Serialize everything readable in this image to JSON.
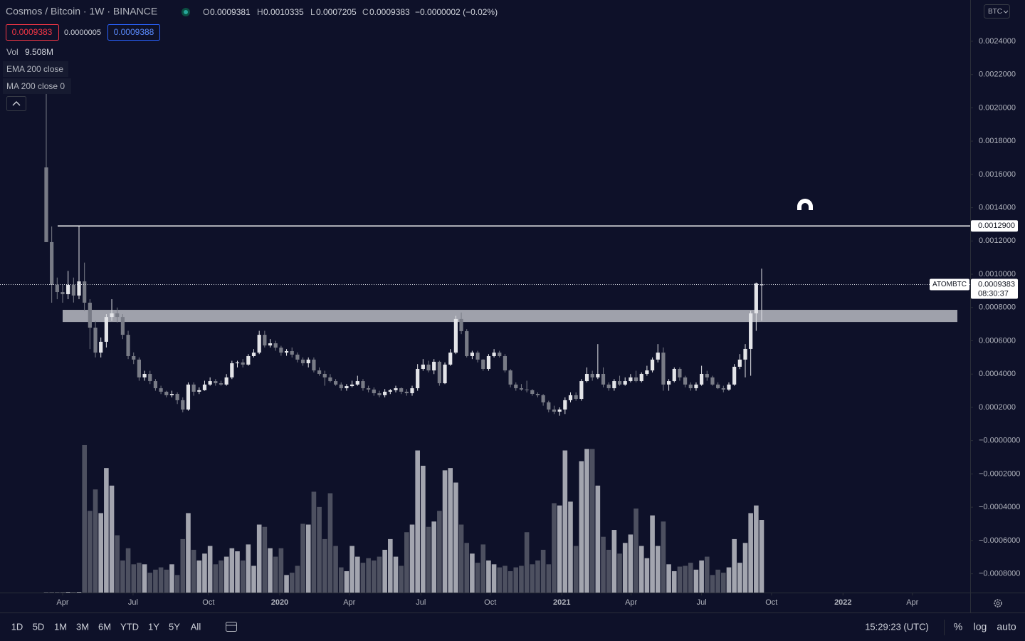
{
  "header": {
    "symbol_title": "Cosmos / Bitcoin · 1W · BINANCE",
    "o": "O",
    "h": "H",
    "l": "L",
    "c": "C",
    "change": "−0.0000002 (−0.02%)",
    "sell": "0.0009383",
    "spread": "0.0000005",
    "buy": "0.0009388",
    "vol_label": "Vol",
    "vol_value": "9.508M",
    "indicators": [
      "EMA 200 close",
      "MA 200 close 0"
    ]
  },
  "currency": "BTC",
  "toolbar": {
    "ranges": [
      "1D",
      "5D",
      "1M",
      "3M",
      "6M",
      "YTD",
      "1Y",
      "5Y",
      "All"
    ],
    "time": "15:29:23 (UTC)",
    "options": [
      "%",
      "log",
      "auto"
    ]
  },
  "chart_data": {
    "type": "candlestick",
    "countdown": "08:30:37",
    "ylim": [
      -0.000913,
      0.002648
    ],
    "yticks": [
      {
        "value": 0.0024,
        "label": "0.0024000"
      },
      {
        "value": 0.0022,
        "label": "0.0022000"
      },
      {
        "value": 0.002,
        "label": "0.0020000"
      },
      {
        "value": 0.0018,
        "label": "0.0018000"
      },
      {
        "value": 0.0016,
        "label": "0.0016000"
      },
      {
        "value": 0.0014,
        "label": "0.0014000"
      },
      {
        "value": 0.0012,
        "label": "0.0012000"
      },
      {
        "value": 0.001,
        "label": "0.0010000"
      },
      {
        "value": 0.0008,
        "label": "0.0008000"
      },
      {
        "value": 0.0006,
        "label": "0.0006000"
      },
      {
        "value": 0.0004,
        "label": "0.0004000"
      },
      {
        "value": 0.0002,
        "label": "0.0002000"
      },
      {
        "value": 0,
        "label": "−0.0000000"
      },
      {
        "value": -0.0002,
        "label": "−0.0002000"
      },
      {
        "value": -0.0004,
        "label": "−0.0004000"
      },
      {
        "value": -0.0006,
        "label": "−0.0006000"
      },
      {
        "value": -0.0008,
        "label": "−0.0008000"
      }
    ],
    "xlim": [
      -8.47,
      169.19
    ],
    "xticks": [
      {
        "value": 3.0,
        "label": "Apr"
      },
      {
        "value": 15.9,
        "label": "Jul"
      },
      {
        "value": 29.7,
        "label": "Oct"
      },
      {
        "value": 42.75,
        "label": "2020"
      },
      {
        "value": 55.5,
        "label": "Apr"
      },
      {
        "value": 68.6,
        "label": "Jul"
      },
      {
        "value": 81.3,
        "label": "Oct"
      },
      {
        "value": 94.4,
        "label": "2021"
      },
      {
        "value": 107.1,
        "label": "Apr"
      },
      {
        "value": 120.0,
        "label": "Jul"
      },
      {
        "value": 132.8,
        "label": "Oct"
      },
      {
        "value": 145.9,
        "label": "2022"
      },
      {
        "value": 158.6,
        "label": "Apr"
      }
    ],
    "volume_lim": [
      0,
      22
    ],
    "hline": {
      "value": 0.00129,
      "label": "0.0012900"
    },
    "zone": {
      "low": 0.000713,
      "high": 0.000786
    },
    "series": [
      {
        "name": "ATOMBTC",
        "up_color": "#e3e4e8",
        "down_color": "#787b86",
        "ohlc": [
          [
            0.001642,
            0.002092,
            0.001193,
            0.001193
          ],
          [
            0.001193,
            0.001287,
            0.000829,
            0.000936
          ],
          [
            0.000936,
            0.00098,
            0.00085,
            0.000893
          ],
          [
            0.000893,
            0.000936,
            0.000829,
            0.00088
          ],
          [
            0.00088,
            0.00102,
            0.00085,
            0.000936
          ],
          [
            0.000936,
            0.00098,
            0.00083,
            0.000872
          ],
          [
            0.000872,
            0.001287,
            0.00085,
            0.000957
          ],
          [
            0.000957,
            0.00107,
            0.00078,
            0.000829
          ],
          [
            0.000829,
            0.00085,
            0.00055,
            0.000679
          ],
          [
            0.000679,
            0.00072,
            0.0005,
            0.000529
          ],
          [
            0.000529,
            0.00062,
            0.0005,
            0.000594
          ],
          [
            0.000594,
            0.00076,
            0.00056,
            0.000743
          ],
          [
            0.000743,
            0.00085,
            0.00072,
            0.000765
          ],
          [
            0.000765,
            0.0008,
            0.00071,
            0.000743
          ],
          [
            0.000743,
            0.00076,
            0.00061,
            0.000636
          ],
          [
            0.000636,
            0.00066,
            0.00049,
            0.000508
          ],
          [
            0.000508,
            0.00053,
            0.00046,
            0.000487
          ],
          [
            0.000487,
            0.0005,
            0.00036,
            0.00038
          ],
          [
            0.00038,
            0.00042,
            0.00036,
            0.000401
          ],
          [
            0.000401,
            0.00042,
            0.00034,
            0.000358
          ],
          [
            0.000358,
            0.00037,
            0.0003,
            0.000315
          ],
          [
            0.000315,
            0.00033,
            0.00028,
            0.000294
          ],
          [
            0.000294,
            0.0003,
            0.00026,
            0.000273
          ],
          [
            0.000273,
            0.0003,
            0.00026,
            0.000281
          ],
          [
            0.000281,
            0.00029,
            0.00022,
            0.000243
          ],
          [
            0.000243,
            0.00026,
            0.00017,
            0.000187
          ],
          [
            0.000187,
            0.00035,
            0.00018,
            0.000337
          ],
          [
            0.000337,
            0.00035,
            0.00027,
            0.000294
          ],
          [
            0.000294,
            0.00032,
            0.00028,
            0.000303
          ],
          [
            0.000303,
            0.00036,
            0.0003,
            0.000337
          ],
          [
            0.000337,
            0.00038,
            0.00033,
            0.000358
          ],
          [
            0.000358,
            0.00037,
            0.00033,
            0.000345
          ],
          [
            0.000345,
            0.00036,
            0.00033,
            0.000337
          ],
          [
            0.000337,
            0.0004,
            0.00033,
            0.00038
          ],
          [
            0.00038,
            0.00048,
            0.00037,
            0.000465
          ],
          [
            0.000465,
            0.00048,
            0.00044,
            0.00047
          ],
          [
            0.00047,
            0.00049,
            0.00044,
            0.000457
          ],
          [
            0.000457,
            0.00052,
            0.00045,
            0.000508
          ],
          [
            0.000508,
            0.00055,
            0.0005,
            0.000529
          ],
          [
            0.000529,
            0.00066,
            0.00052,
            0.000636
          ],
          [
            0.000636,
            0.00066,
            0.00056,
            0.000572
          ],
          [
            0.000572,
            0.00061,
            0.00056,
            0.000585
          ],
          [
            0.000585,
            0.0006,
            0.00054,
            0.000559
          ],
          [
            0.000559,
            0.00057,
            0.00051,
            0.000529
          ],
          [
            0.000529,
            0.00055,
            0.00051,
            0.000538
          ],
          [
            0.000538,
            0.00056,
            0.0005,
            0.000517
          ],
          [
            0.000517,
            0.00053,
            0.00047,
            0.000487
          ],
          [
            0.000487,
            0.0005,
            0.00045,
            0.000465
          ],
          [
            0.000465,
            0.0005,
            0.00044,
            0.000487
          ],
          [
            0.000487,
            0.0005,
            0.00041,
            0.000422
          ],
          [
            0.000422,
            0.00044,
            0.00039,
            0.000401
          ],
          [
            0.000401,
            0.00042,
            0.00033,
            0.00038
          ],
          [
            0.00038,
            0.0004,
            0.00035,
            0.000358
          ],
          [
            0.000358,
            0.00037,
            0.00033,
            0.000337
          ],
          [
            0.000337,
            0.00035,
            0.0003,
            0.000315
          ],
          [
            0.000315,
            0.00034,
            0.0003,
            0.000328
          ],
          [
            0.000328,
            0.00036,
            0.00032,
            0.000337
          ],
          [
            0.000337,
            0.00039,
            0.00033,
            0.000358
          ],
          [
            0.000358,
            0.00037,
            0.0003,
            0.000315
          ],
          [
            0.000315,
            0.00033,
            0.00029,
            0.000307
          ],
          [
            0.000307,
            0.00032,
            0.00027,
            0.000285
          ],
          [
            0.000285,
            0.0003,
            0.00026,
            0.000273
          ],
          [
            0.000273,
            0.00031,
            0.00026,
            0.000294
          ],
          [
            0.000294,
            0.00031,
            0.00028,
            0.000303
          ],
          [
            0.000303,
            0.00033,
            0.00029,
            0.000315
          ],
          [
            0.000315,
            0.00032,
            0.00028,
            0.000294
          ],
          [
            0.000294,
            0.00031,
            0.00027,
            0.000285
          ],
          [
            0.000285,
            0.00033,
            0.00027,
            0.000315
          ],
          [
            0.000315,
            0.00046,
            0.0003,
            0.000431
          ],
          [
            0.000431,
            0.00049,
            0.00042,
            0.000457
          ],
          [
            0.000457,
            0.00048,
            0.00041,
            0.000422
          ],
          [
            0.000422,
            0.00049,
            0.0004,
            0.000474
          ],
          [
            0.000474,
            0.00048,
            0.00033,
            0.000345
          ],
          [
            0.000345,
            0.00047,
            0.00034,
            0.000457
          ],
          [
            0.000457,
            0.00055,
            0.00045,
            0.000529
          ],
          [
            0.000529,
            0.00075,
            0.00052,
            0.000731
          ],
          [
            0.000731,
            0.00077,
            0.00064,
            0.000658
          ],
          [
            0.000658,
            0.00067,
            0.0005,
            0.000508
          ],
          [
            0.000508,
            0.00054,
            0.00049,
            0.000529
          ],
          [
            0.000529,
            0.00054,
            0.00047,
            0.000487
          ],
          [
            0.000487,
            0.00049,
            0.00042,
            0.000431
          ],
          [
            0.000431,
            0.00052,
            0.00042,
            0.000508
          ],
          [
            0.000508,
            0.00055,
            0.0005,
            0.000529
          ],
          [
            0.000529,
            0.00054,
            0.0005,
            0.000508
          ],
          [
            0.000508,
            0.00052,
            0.00041,
            0.000422
          ],
          [
            0.000422,
            0.00043,
            0.00032,
            0.000337
          ],
          [
            0.000337,
            0.00035,
            0.0003,
            0.000315
          ],
          [
            0.000315,
            0.00034,
            0.0003,
            0.000307
          ],
          [
            0.000307,
            0.00036,
            0.00029,
            0.000303
          ],
          [
            0.000303,
            0.00031,
            0.00027,
            0.000281
          ],
          [
            0.000281,
            0.00029,
            0.00026,
            0.000273
          ],
          [
            0.000273,
            0.00028,
            0.00021,
            0.00023
          ],
          [
            0.00023,
            0.00024,
            0.00017,
            0.000187
          ],
          [
            0.000187,
            0.00021,
            0.00016,
            0.000174
          ],
          [
            0.000174,
            0.0002,
            0.00015,
            0.000187
          ],
          [
            0.000187,
            0.00026,
            0.00016,
            0.000243
          ],
          [
            0.000243,
            0.00029,
            0.00023,
            0.000273
          ],
          [
            0.000273,
            0.00029,
            0.00024,
            0.000251
          ],
          [
            0.000251,
            0.00037,
            0.00024,
            0.000358
          ],
          [
            0.000358,
            0.00044,
            0.00035,
            0.000401
          ],
          [
            0.000401,
            0.00042,
            0.00036,
            0.00038
          ],
          [
            0.00038,
            0.00058,
            0.00037,
            0.000401
          ],
          [
            0.000401,
            0.00044,
            0.00032,
            0.000337
          ],
          [
            0.000337,
            0.00035,
            0.0003,
            0.000315
          ],
          [
            0.000315,
            0.00037,
            0.0003,
            0.000358
          ],
          [
            0.000358,
            0.00039,
            0.00033,
            0.000337
          ],
          [
            0.000337,
            0.00038,
            0.00033,
            0.000358
          ],
          [
            0.000358,
            0.0004,
            0.00035,
            0.00038
          ],
          [
            0.00038,
            0.00042,
            0.00035,
            0.000358
          ],
          [
            0.000358,
            0.00041,
            0.00035,
            0.000401
          ],
          [
            0.000401,
            0.00045,
            0.00039,
            0.000422
          ],
          [
            0.000422,
            0.0005,
            0.00041,
            0.000487
          ],
          [
            0.000487,
            0.00058,
            0.00047,
            0.000529
          ],
          [
            0.000529,
            0.00056,
            0.0003,
            0.000337
          ],
          [
            0.000337,
            0.00037,
            0.0003,
            0.000358
          ],
          [
            0.000358,
            0.00044,
            0.00035,
            0.000431
          ],
          [
            0.000431,
            0.00044,
            0.00036,
            0.00038
          ],
          [
            0.00038,
            0.00039,
            0.00032,
            0.000337
          ],
          [
            0.000337,
            0.00035,
            0.0003,
            0.000315
          ],
          [
            0.000315,
            0.00035,
            0.0003,
            0.000337
          ],
          [
            0.000337,
            0.00045,
            0.00033,
            0.000401
          ],
          [
            0.000401,
            0.00042,
            0.00036,
            0.00038
          ],
          [
            0.00038,
            0.00039,
            0.00033,
            0.000337
          ],
          [
            0.000337,
            0.00035,
            0.00031,
            0.000315
          ],
          [
            0.000315,
            0.00033,
            0.00029,
            0.000307
          ],
          [
            0.000307,
            0.00035,
            0.0003,
            0.000337
          ],
          [
            0.000337,
            0.00046,
            0.00033,
            0.000444
          ],
          [
            0.000444,
            0.00052,
            0.00043,
            0.000487
          ],
          [
            0.000487,
            0.00058,
            0.00038,
            0.000551
          ],
          [
            0.000551,
            0.00078,
            0.00039,
            0.000765
          ],
          [
            0.000765,
            0.00095,
            0.00066,
            0.000945
          ],
          [
            0.0009381,
            0.0010335,
            0.0007205,
            0.0009383
          ]
        ],
        "volume": [
          0.09,
          0.09,
          0.09,
          0.09,
          0.09,
          0.09,
          0.09,
          19.3,
          10.7,
          13.5,
          10.4,
          16.3,
          14.0,
          7.5,
          4.2,
          5.8,
          3.7,
          3.9,
          3.7,
          2.6,
          3.0,
          3.3,
          3.0,
          3.7,
          2.3,
          7.0,
          10.4,
          5.6,
          4.2,
          5.1,
          6.1,
          3.7,
          4.2,
          4.7,
          5.8,
          5.4,
          4.2,
          6.3,
          3.5,
          8.9,
          8.6,
          5.8,
          4.7,
          5.8,
          2.3,
          2.6,
          3.5,
          9.0,
          8.9,
          13.2,
          11.2,
          7.0,
          13.0,
          6.1,
          3.3,
          2.8,
          6.1,
          4.7,
          3.9,
          4.5,
          4.2,
          4.7,
          5.6,
          7.0,
          4.7,
          3.5,
          7.9,
          8.9,
          18.6,
          16.6,
          8.6,
          9.3,
          10.7,
          16.0,
          16.3,
          14.4,
          8.9,
          6.5,
          5.1,
          3.9,
          6.3,
          4.2,
          3.7,
          3.3,
          3.5,
          2.8,
          3.3,
          3.5,
          7.9,
          3.7,
          4.2,
          5.6,
          3.7,
          11.7,
          11.4,
          18.6,
          11.9,
          6.1,
          17.2,
          18.8,
          18.8,
          14.0,
          7.3,
          5.6,
          8.2,
          5.1,
          6.5,
          7.6,
          11.0,
          6.1,
          4.5,
          10.1,
          6.1,
          9.3,
          3.7,
          2.8,
          3.4,
          3.5,
          3.9,
          3.0,
          4.2,
          4.7,
          2.3,
          3.0,
          2.6,
          3.3,
          7.0,
          3.9,
          6.5,
          10.4,
          11.4,
          9.508
        ]
      }
    ]
  }
}
